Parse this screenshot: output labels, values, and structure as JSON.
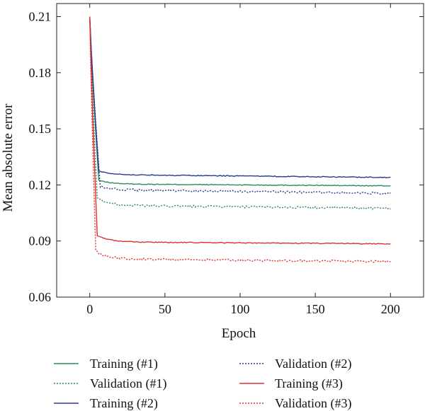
{
  "chart_data": {
    "type": "line",
    "title": "",
    "xlabel": "Epoch",
    "ylabel": "Mean absolute error",
    "xlim": [
      -22,
      222
    ],
    "ylim": [
      0.06,
      0.217
    ],
    "xticks": [
      0,
      50,
      100,
      150,
      200
    ],
    "yticks": [
      0.06,
      0.09,
      0.12,
      0.15,
      0.18,
      0.21
    ],
    "xtick_labels": [
      "0",
      "50",
      "100",
      "150",
      "200"
    ],
    "ytick_labels": [
      "0.06",
      "0.09",
      "0.12",
      "0.15",
      "0.18",
      "0.21"
    ],
    "grid": false,
    "legend_position": "bottom",
    "series": [
      {
        "name": "Training (#1)",
        "color": "#2e8b57",
        "style": "solid",
        "start": 0.21,
        "knee_x": 6,
        "knee_y": 0.1225,
        "plateau": 0.1205,
        "end": 0.1195
      },
      {
        "name": "Validation (#1)",
        "color": "#2e8b57",
        "style": "dotted",
        "start": 0.21,
        "knee_x": 5,
        "knee_y": 0.113,
        "plateau": 0.109,
        "end": 0.1075
      },
      {
        "name": "Training (#2)",
        "color": "#2b3a8c",
        "style": "solid",
        "start": 0.21,
        "knee_x": 6,
        "knee_y": 0.1275,
        "plateau": 0.1255,
        "end": 0.124
      },
      {
        "name": "Validation (#2)",
        "color": "#2b3a8c",
        "style": "dotted",
        "start": 0.21,
        "knee_x": 7,
        "knee_y": 0.119,
        "plateau": 0.1175,
        "end": 0.1155
      },
      {
        "name": "Training (#3)",
        "color": "#e03030",
        "style": "solid",
        "start": 0.21,
        "knee_x": 5,
        "knee_y": 0.093,
        "plateau": 0.0895,
        "end": 0.0885
      },
      {
        "name": "Validation (#3)",
        "color": "#e03030",
        "style": "dotted",
        "start": 0.21,
        "knee_x": 4,
        "knee_y": 0.0845,
        "plateau": 0.0805,
        "end": 0.079
      }
    ]
  }
}
